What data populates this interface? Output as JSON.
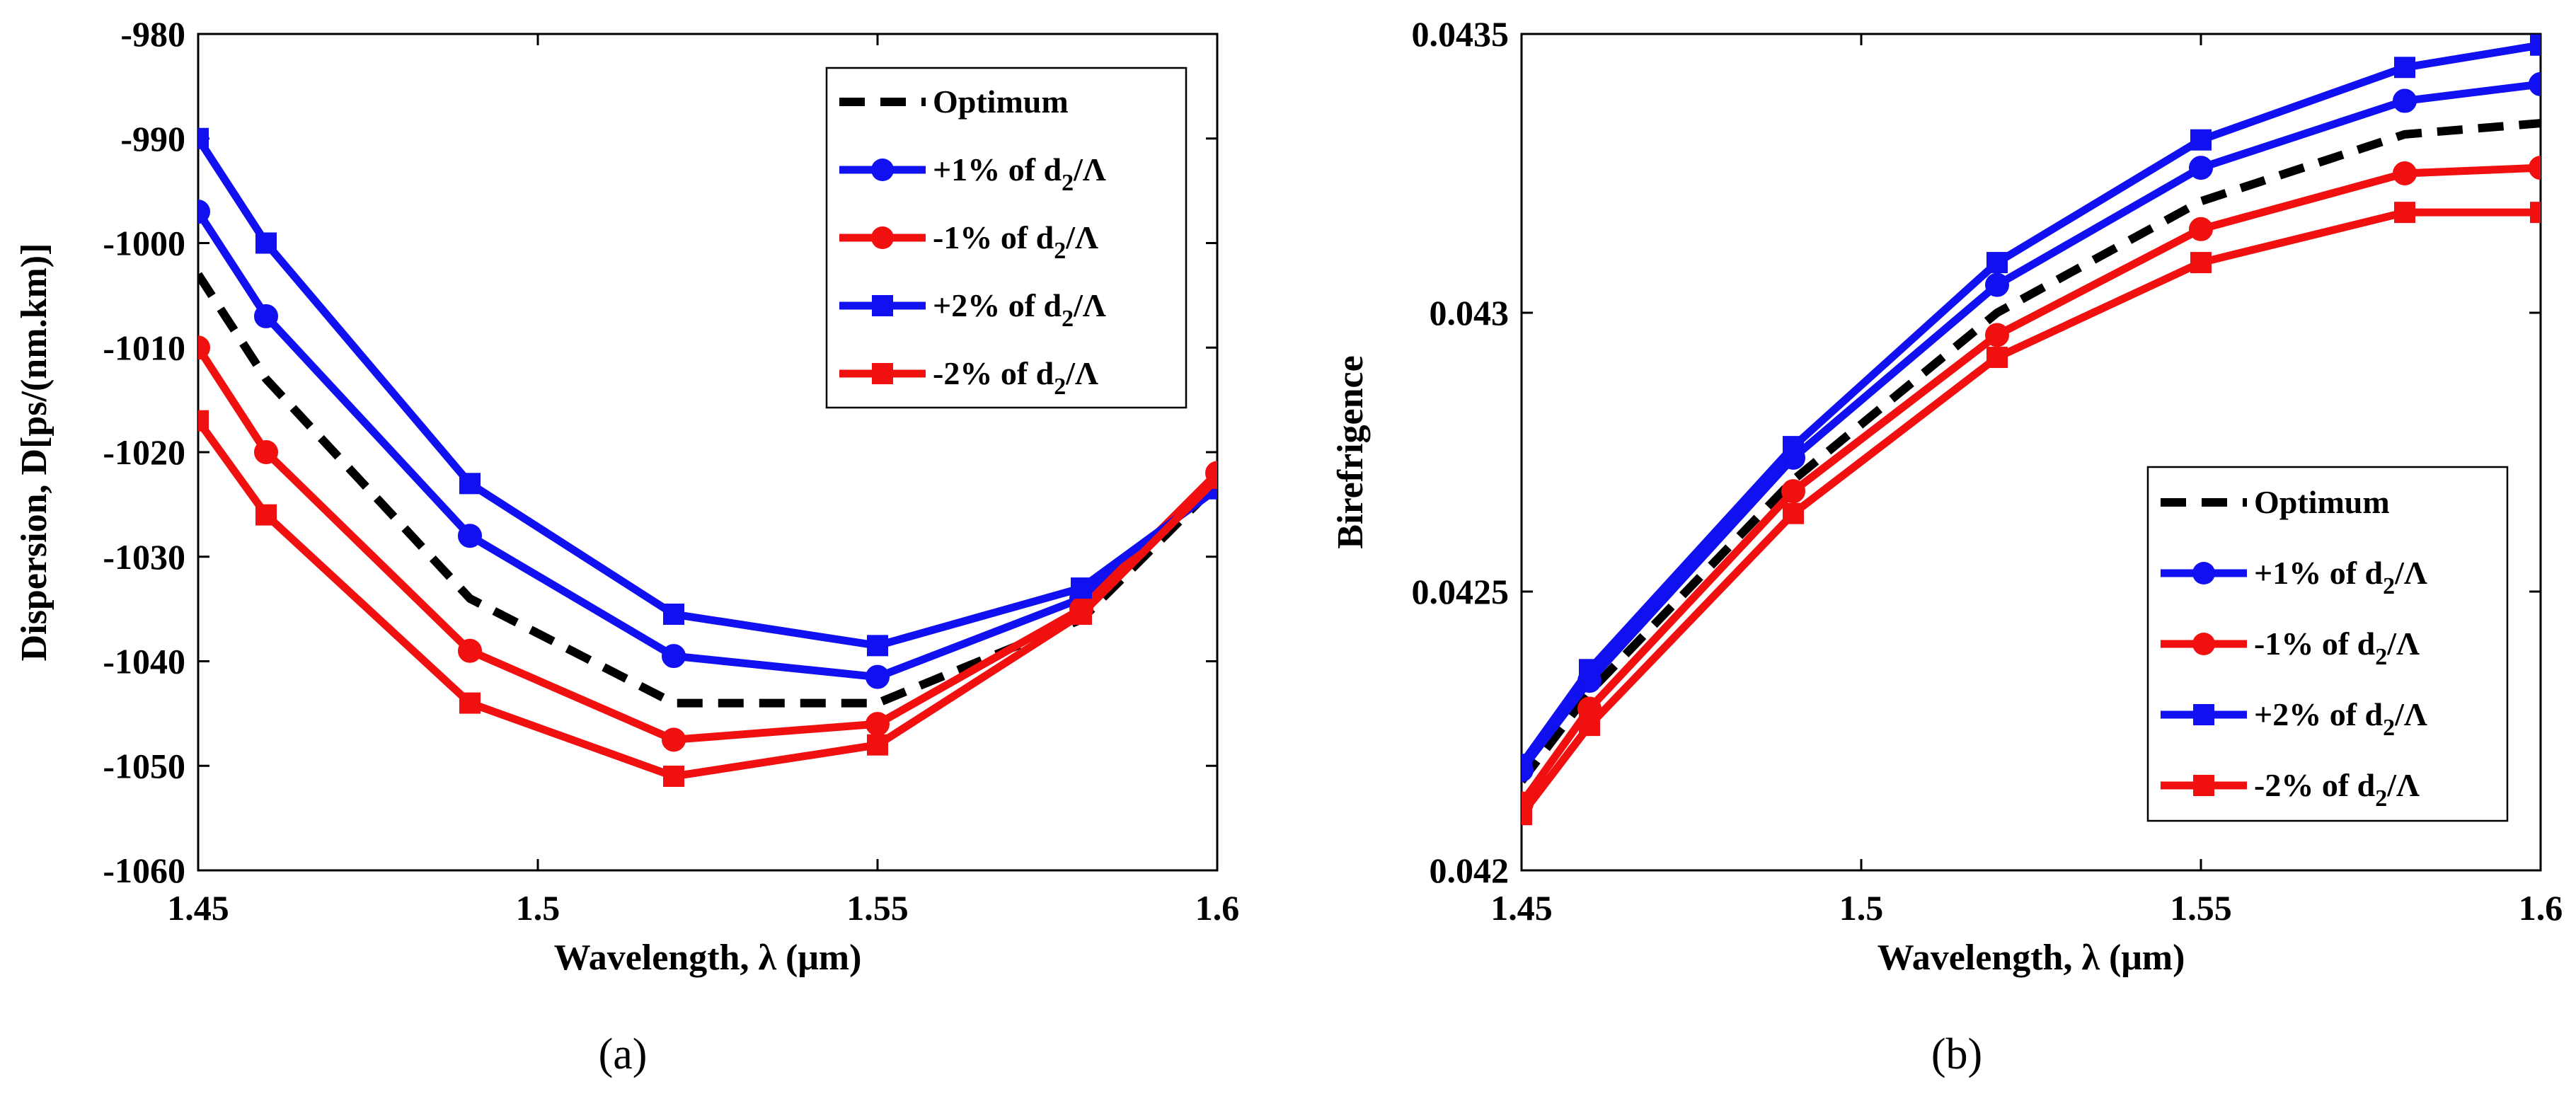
{
  "colors": {
    "blue": "#1010f0",
    "red": "#f01010",
    "black": "#000000"
  },
  "chart_data": [
    {
      "type": "line",
      "panel_label": "(a)",
      "title": "",
      "xlabel": "Wavelength, λ (μm)",
      "ylabel": "Dispersion, D[ps/(nm.km)]",
      "xlim": [
        1.45,
        1.6
      ],
      "ylim": [
        -1060,
        -980
      ],
      "xticks": [
        1.45,
        1.5,
        1.55,
        1.6
      ],
      "xtick_labels": [
        "1.45",
        "1.5",
        "1.55",
        "1.6"
      ],
      "yticks": [
        -1060,
        -1050,
        -1040,
        -1030,
        -1020,
        -1010,
        -1000,
        -990,
        -980
      ],
      "ytick_labels": [
        "-1060",
        "-1050",
        "-1040",
        "-1030",
        "-1020",
        "-1010",
        "-1000",
        "-990",
        "-980"
      ],
      "legend_position": "top-right",
      "x": [
        1.45,
        1.46,
        1.49,
        1.52,
        1.55,
        1.58,
        1.6
      ],
      "series": [
        {
          "name": "Optimum",
          "color": "#000000",
          "style": "dashed",
          "marker": "none",
          "values": [
            -1003,
            -1013,
            -1034,
            -1044,
            -1044,
            -1036,
            -1023
          ]
        },
        {
          "name": "+1% of d2/Λ",
          "color": "#1010f0",
          "style": "solid",
          "marker": "circle",
          "values": [
            -997,
            -1007,
            -1028,
            -1039.5,
            -1041.5,
            -1034,
            -1023
          ]
        },
        {
          "name": "-1% of d2/Λ",
          "color": "#f01010",
          "style": "solid",
          "marker": "circle",
          "values": [
            -1010,
            -1020,
            -1039,
            -1047.5,
            -1046,
            -1035,
            -1022
          ]
        },
        {
          "name": "+2% of d2/Λ",
          "color": "#1010f0",
          "style": "solid",
          "marker": "square",
          "values": [
            -990,
            -1000,
            -1023,
            -1035.5,
            -1038.5,
            -1033,
            -1023.5
          ]
        },
        {
          "name": "-2% of d2/Λ",
          "color": "#f01010",
          "style": "solid",
          "marker": "square",
          "values": [
            -1017,
            -1026,
            -1044,
            -1051,
            -1048,
            -1035.5,
            -1022.5
          ]
        }
      ]
    },
    {
      "type": "line",
      "panel_label": "(b)",
      "title": "",
      "xlabel": "Wavelength, λ (μm)",
      "ylabel": "Birefrigence",
      "xlim": [
        1.45,
        1.6
      ],
      "ylim": [
        0.042,
        0.0435
      ],
      "xticks": [
        1.45,
        1.5,
        1.55,
        1.6
      ],
      "xtick_labels": [
        "1.45",
        "1.5",
        "1.55",
        "1.6"
      ],
      "yticks": [
        0.042,
        0.0425,
        0.043,
        0.0435
      ],
      "ytick_labels": [
        "0.042",
        "0.0425",
        "0.043",
        "0.0435"
      ],
      "legend_position": "bottom-right",
      "x": [
        1.45,
        1.46,
        1.49,
        1.52,
        1.55,
        1.58,
        1.6
      ],
      "series": [
        {
          "name": "Optimum",
          "color": "#000000",
          "style": "dashed",
          "marker": "none",
          "values": [
            0.04216,
            0.04232,
            0.0427,
            0.043,
            0.0432,
            0.04332,
            0.04334
          ]
        },
        {
          "name": "+1% of d2/Λ",
          "color": "#1010f0",
          "style": "solid",
          "marker": "circle",
          "values": [
            0.04218,
            0.04234,
            0.04274,
            0.04305,
            0.04326,
            0.04338,
            0.04341
          ]
        },
        {
          "name": "-1% of d2/Λ",
          "color": "#f01010",
          "style": "solid",
          "marker": "circle",
          "values": [
            0.04212,
            0.04229,
            0.04268,
            0.04296,
            0.04315,
            0.04325,
            0.04326
          ]
        },
        {
          "name": "+2% of d2/Λ",
          "color": "#1010f0",
          "style": "solid",
          "marker": "square",
          "values": [
            0.04219,
            0.04236,
            0.04276,
            0.04309,
            0.04331,
            0.04344,
            0.04348
          ]
        },
        {
          "name": "-2% of d2/Λ",
          "color": "#f01010",
          "style": "solid",
          "marker": "square",
          "values": [
            0.0421,
            0.04226,
            0.04264,
            0.04292,
            0.04309,
            0.04318,
            0.04318
          ]
        }
      ]
    }
  ]
}
